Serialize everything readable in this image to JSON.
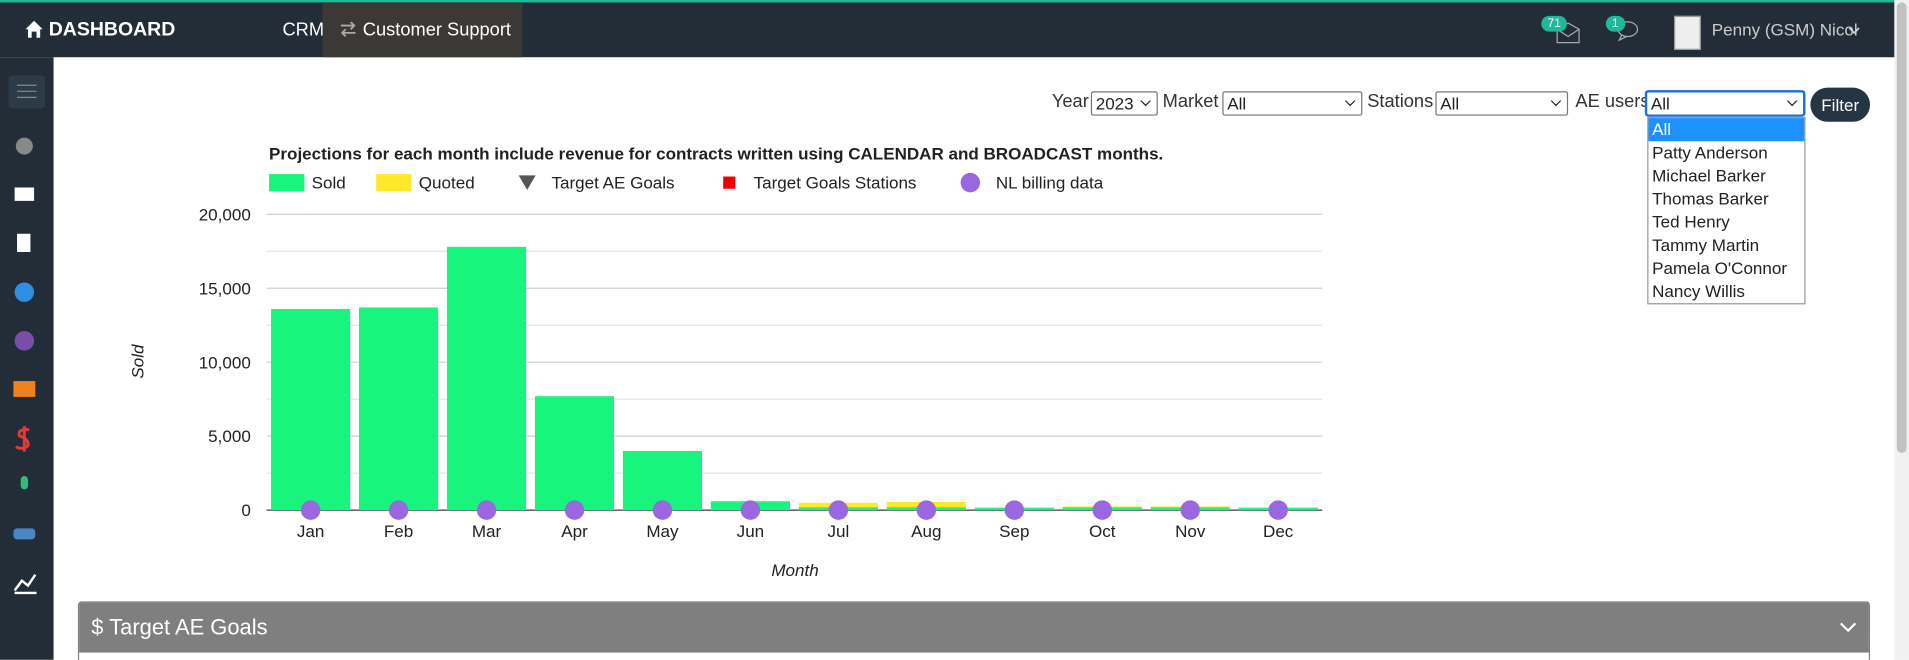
{
  "nav": {
    "brand": "DASHBOARD",
    "links": [
      "CRM",
      "Customer Support"
    ],
    "badges": [
      71,
      1
    ],
    "user": "Penny (GSM) Nicol"
  },
  "filters": {
    "year_label": "Year",
    "year": "2023",
    "market_label": "Market",
    "market": "All",
    "stations_label": "Stations",
    "stations": "All",
    "ae_label": "AE users",
    "ae": "All",
    "button": "Filter",
    "ae_options": [
      "All",
      "Patty Anderson",
      "Michael Barker",
      "Thomas Barker",
      "Ted Henry",
      "Tammy Martin",
      "Pamela O'Connor",
      "Nancy Willis"
    ]
  },
  "chart_data": {
    "type": "bar",
    "stacked": true,
    "title": "Projections for each month include revenue for contracts written using CALENDAR and BROADCAST months.",
    "x_label": "Month",
    "y_label": "Sold",
    "categories": [
      "Jan",
      "Feb",
      "Mar",
      "Apr",
      "May",
      "Jun",
      "Jul",
      "Aug",
      "Sep",
      "Oct",
      "Nov",
      "Dec"
    ],
    "series": [
      {
        "name": "Sold",
        "color": "#17f57e",
        "values": [
          13600,
          13700,
          17800,
          7700,
          4000,
          600,
          200,
          200,
          150,
          200,
          200,
          150
        ]
      },
      {
        "name": "Quoted",
        "color": "#ffe82a",
        "values": [
          0,
          0,
          0,
          0,
          0,
          0,
          300,
          350,
          50,
          50,
          50,
          50
        ]
      },
      {
        "name": "Target AE Goals",
        "color": "#555555",
        "marker": "triangle",
        "values": [
          null,
          null,
          null,
          null,
          null,
          null,
          null,
          null,
          null,
          null,
          null,
          null
        ]
      },
      {
        "name": "Target Goals Stations",
        "color": "#ee0000",
        "marker": "square",
        "values": [
          null,
          null,
          null,
          null,
          null,
          null,
          null,
          null,
          null,
          null,
          null,
          null
        ]
      },
      {
        "name": "NL billing data",
        "color": "#9a67e0",
        "marker": "circle",
        "values": [
          0,
          0,
          0,
          0,
          0,
          0,
          0,
          0,
          0,
          0,
          0,
          0
        ]
      }
    ],
    "ylim": [
      0,
      20000
    ],
    "yticks": [
      0,
      {
        "value": 5000,
        "label": "5,000"
      },
      {
        "value": 10000,
        "label": "10,000"
      },
      {
        "value": 15000,
        "label": "15,000"
      },
      {
        "value": 20000,
        "label": "20,000"
      }
    ],
    "minor_yticks": [
      2500,
      7500,
      12500,
      17500
    ],
    "grid": true
  },
  "panel": {
    "title": "$ Target AE Goals"
  }
}
